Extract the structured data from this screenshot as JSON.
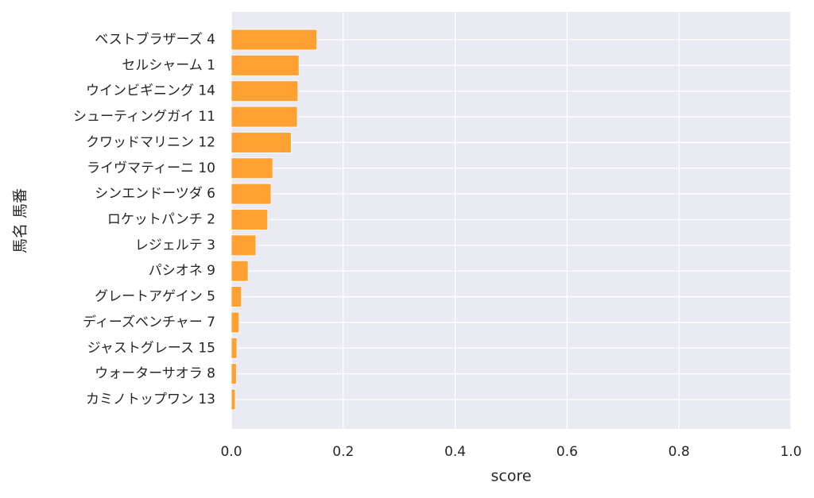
{
  "chart_data": {
    "type": "barh",
    "categories": [
      "ベストブラザーズ 4",
      "セルシャーム 1",
      "ウインビギニング 14",
      "シューティングガイ 11",
      "クワッドマリニン 12",
      "ライヴマティーニ 10",
      "シンエンドーツダ 6",
      "ロケットパンチ 2",
      "レジェルテ 3",
      "パシオネ 9",
      "グレートアゲイン 5",
      "ディーズベンチャー 7",
      "ジャストグレース 15",
      "ウォーターサオラ 8",
      "カミノトップワン 13"
    ],
    "values": [
      0.153,
      0.121,
      0.119,
      0.118,
      0.107,
      0.074,
      0.071,
      0.065,
      0.044,
      0.03,
      0.018,
      0.014,
      0.01,
      0.009,
      0.007
    ],
    "color": "#ffa033",
    "xlabel": "score",
    "ylabel": "馬名 馬番",
    "xlim": [
      0,
      1
    ],
    "xticks": [
      {
        "value": 0,
        "label": "0.0"
      },
      0.2,
      0.4,
      0.6,
      0.8,
      {
        "value": 1,
        "label": "1.0"
      }
    ],
    "grid": true
  }
}
